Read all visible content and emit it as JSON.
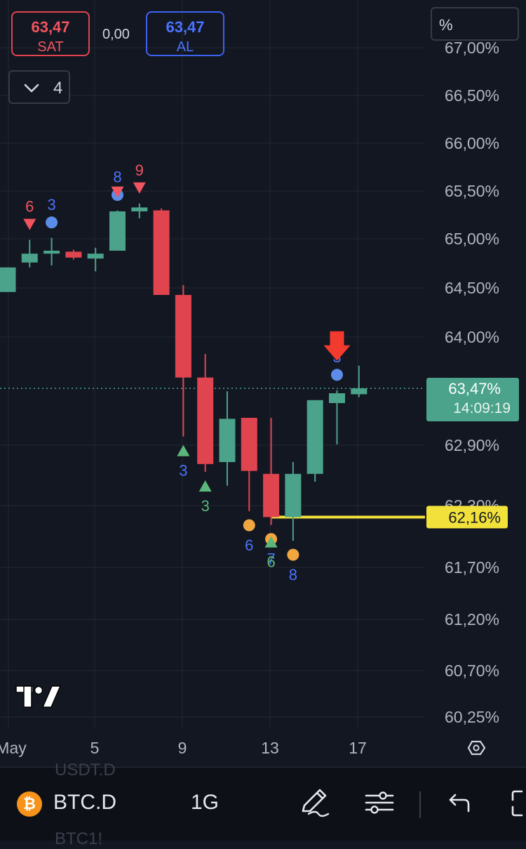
{
  "quote": {
    "sell_price": "63,47",
    "sell_label": "SAT",
    "spread": "0,00",
    "buy_price": "63,47",
    "buy_label": "AL"
  },
  "collapse_button": {
    "count": "4"
  },
  "scale_button": {
    "label": "%"
  },
  "bottom_bar": {
    "symbol": "BTC.D",
    "interval": "1G",
    "ghost_above": "USDT.D",
    "ghost_below": "BTC1!",
    "icons": [
      "bitcoin-icon",
      "pencil-icon",
      "indicator-settings-icon",
      "undo-icon",
      "fullscreen-icon"
    ]
  },
  "colors": {
    "background": "#131722",
    "up": "#4aa38a",
    "down": "#e0444f",
    "last_price": "#4aa38a",
    "support_line": "#f2e13a",
    "arrow": "#f23b2e",
    "marker_blue": "#5b8de8",
    "marker_orange": "#f2a640",
    "marker_green": "#5cb87a",
    "marker_red": "#f0545e",
    "marker_pink": "#e56a8a"
  },
  "chart_data": {
    "type": "candlestick",
    "y_ticks": [
      "67,00%",
      "66,50%",
      "66,00%",
      "65,50%",
      "65,00%",
      "64,50%",
      "64,00%",
      "62,90%",
      "62,30%",
      "61,70%",
      "61,20%",
      "60,70%",
      "60,25%"
    ],
    "x_ticks": [
      "May",
      "5",
      "9",
      "13",
      "17"
    ],
    "last_price": {
      "value": "63,47%",
      "countdown": "14:09:19"
    },
    "support_level": {
      "value": 62.16,
      "label": "62,16%"
    },
    "candles": [
      {
        "x": 0,
        "open": 64.45,
        "high": 64.7,
        "low": 64.45,
        "close": 64.7
      },
      {
        "x": 1,
        "open": 64.75,
        "high": 64.98,
        "low": 64.7,
        "close": 64.84
      },
      {
        "x": 2,
        "open": 64.84,
        "high": 65.0,
        "low": 64.72,
        "close": 64.87
      },
      {
        "x": 3,
        "open": 64.86,
        "high": 64.88,
        "low": 64.78,
        "close": 64.8
      },
      {
        "x": 4,
        "open": 64.79,
        "high": 64.9,
        "low": 64.66,
        "close": 64.84
      },
      {
        "x": 5,
        "open": 64.87,
        "high": 65.28,
        "low": 64.87,
        "close": 65.27
      },
      {
        "x": 6,
        "open": 65.27,
        "high": 65.35,
        "low": 65.2,
        "close": 65.31
      },
      {
        "x": 7,
        "open": 65.28,
        "high": 65.3,
        "low": 64.42,
        "close": 64.42
      },
      {
        "x": 8,
        "open": 64.42,
        "high": 64.52,
        "low": 62.98,
        "close": 63.58
      },
      {
        "x": 9,
        "open": 63.58,
        "high": 63.82,
        "low": 62.62,
        "close": 62.7
      },
      {
        "x": 10,
        "open": 62.72,
        "high": 63.44,
        "low": 62.48,
        "close": 63.16
      },
      {
        "x": 11,
        "open": 63.17,
        "high": 63.17,
        "low": 62.22,
        "close": 62.63
      },
      {
        "x": 12,
        "open": 62.6,
        "high": 63.17,
        "low": 62.08,
        "close": 62.16
      },
      {
        "x": 13,
        "open": 62.16,
        "high": 62.72,
        "low": 61.92,
        "close": 62.6
      },
      {
        "x": 14,
        "open": 62.6,
        "high": 63.35,
        "low": 62.52,
        "close": 63.35
      },
      {
        "x": 15,
        "open": 63.32,
        "high": 63.45,
        "low": 62.9,
        "close": 63.42
      },
      {
        "x": 16,
        "open": 63.41,
        "high": 63.7,
        "low": 63.38,
        "close": 63.47
      }
    ],
    "markers": [
      {
        "x": 1,
        "shape": "triangle-down",
        "color": "marker_red",
        "label": "6",
        "placement": "above"
      },
      {
        "x": 2,
        "shape": "circle",
        "color": "marker_blue",
        "label": "3",
        "placement": "above"
      },
      {
        "x": 5,
        "shape": "circle",
        "color": "marker_blue",
        "label": "8",
        "placement": "above"
      },
      {
        "x": 5,
        "shape": "triangle-down",
        "color": "marker_red",
        "label": "",
        "placement": "above"
      },
      {
        "x": 6,
        "shape": "triangle-down",
        "color": "marker_red",
        "label": "9",
        "placement": "above"
      },
      {
        "x": 8,
        "shape": "triangle-up",
        "color": "marker_green",
        "label": "3",
        "placement": "below"
      },
      {
        "x": 9,
        "shape": "triangle-up",
        "color": "marker_green",
        "label": "3",
        "placement": "below"
      },
      {
        "x": 11,
        "shape": "circle",
        "color": "marker_orange",
        "label": "6",
        "placement": "below"
      },
      {
        "x": 12,
        "shape": "circle",
        "color": "marker_orange",
        "label": "7",
        "placement": "below"
      },
      {
        "x": 12,
        "shape": "triangle-up",
        "color": "marker_green",
        "label": "6",
        "placement": "below"
      },
      {
        "x": 13,
        "shape": "circle",
        "color": "marker_orange",
        "label": "8",
        "placement": "below"
      },
      {
        "x": 15,
        "shape": "circle",
        "color": "marker_blue",
        "label": "3",
        "placement": "above"
      },
      {
        "x": 15,
        "shape": "arrow-down",
        "color": "arrow",
        "label": "",
        "placement": "above"
      }
    ],
    "grid": true
  }
}
